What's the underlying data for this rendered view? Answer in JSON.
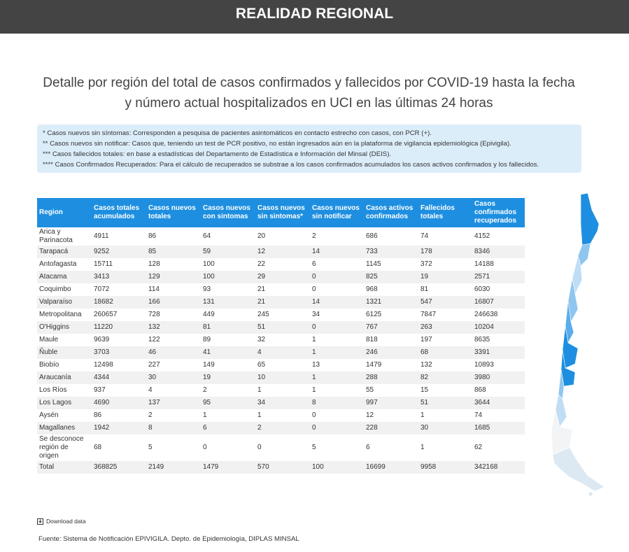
{
  "header": {
    "title": "REALIDAD REGIONAL"
  },
  "title_lines": [
    "Detalle por región del total de casos confirmados y fallecidos por COVID-19 hasta la fecha",
    "y número actual hospitalizados en UCI en las últimas 24 horas"
  ],
  "notes": [
    "* Casos nuevos sin síntomas: Corresponden a pesquisa de pacientes asintomáticos en contacto estrecho con casos, con PCR (+).",
    "** Casos nuevos sin notificar: Casos que, teniendo un test de PCR positivo, no están ingresados aún en la plataforma de vigilancia epidemiológica (Epivigila).",
    "*** Casos fallecidos totales: en base a  estadísticas del Departamento de Estadística e Información del Minsal (DEIS).",
    "**** Casos Confirmados Recuperados: Para el cálculo de recuperados se substrae a los casos confirmados acumulados los casos activos confirmados y los fallecidos."
  ],
  "table": {
    "headers": [
      "Region",
      "Casos totales acumulados",
      "Casos nuevos totales",
      "Casos nuevos con sintomas",
      "Casos nuevos sin sintomas*",
      "Casos nuevos sin notificar",
      "Casos activos confirmados",
      "Fallecidos totales",
      "Casos confirmados recuperados"
    ],
    "rows": [
      [
        "Arica y Parinacota",
        4911,
        86,
        64,
        20,
        2,
        686,
        74,
        4152
      ],
      [
        "Tarapacá",
        9252,
        85,
        59,
        12,
        14,
        733,
        178,
        8346
      ],
      [
        "Antofagasta",
        15711,
        128,
        100,
        22,
        6,
        1145,
        372,
        14188
      ],
      [
        "Atacama",
        3413,
        129,
        100,
        29,
        0,
        825,
        19,
        2571
      ],
      [
        "Coquimbo",
        7072,
        114,
        93,
        21,
        0,
        968,
        81,
        6030
      ],
      [
        "Valparaíso",
        18682,
        166,
        131,
        21,
        14,
        1321,
        547,
        16807
      ],
      [
        "Metropolitana",
        260657,
        728,
        449,
        245,
        34,
        6125,
        7847,
        246638
      ],
      [
        "O'Higgins",
        11220,
        132,
        81,
        51,
        0,
        767,
        263,
        10204
      ],
      [
        "Maule",
        9639,
        122,
        89,
        32,
        1,
        818,
        197,
        8635
      ],
      [
        "Ñuble",
        3703,
        46,
        41,
        4,
        1,
        246,
        68,
        3391
      ],
      [
        "Biobío",
        12498,
        227,
        149,
        65,
        13,
        1479,
        132,
        10893
      ],
      [
        "Araucanía",
        4344,
        30,
        19,
        10,
        1,
        288,
        82,
        3980
      ],
      [
        "Los Ríos",
        937,
        4,
        2,
        1,
        1,
        55,
        15,
        868
      ],
      [
        "Los Lagos",
        4690,
        137,
        95,
        34,
        8,
        997,
        51,
        3644
      ],
      [
        "Aysén",
        86,
        2,
        1,
        1,
        0,
        12,
        1,
        74
      ],
      [
        "Magallanes",
        1942,
        8,
        6,
        2,
        0,
        228,
        30,
        1685
      ],
      [
        "Se desconoce región de origen",
        68,
        5,
        0,
        0,
        5,
        6,
        1,
        62
      ],
      [
        "Total",
        368825,
        2149,
        1479,
        570,
        100,
        16699,
        9958,
        342168
      ]
    ]
  },
  "download": "Download data",
  "source": "Fuente: Sistema de Notificación EPIVIGILA. Depto. de Epidemiología, DIPLAS MINSAL"
}
